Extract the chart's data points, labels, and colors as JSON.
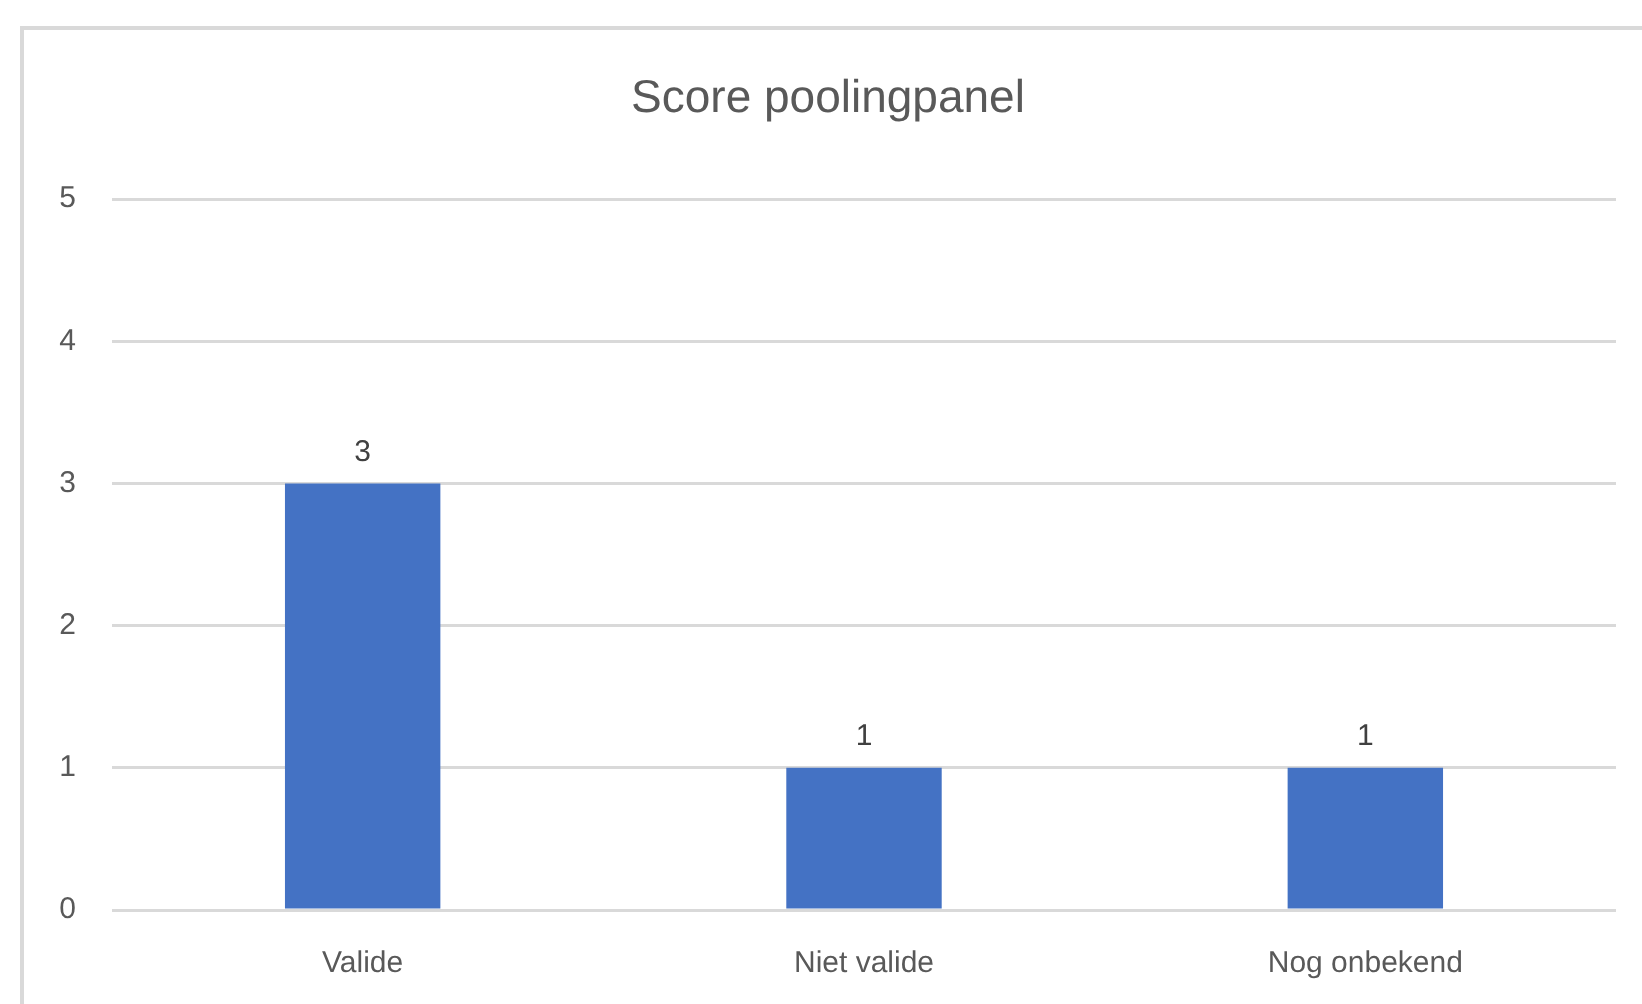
{
  "chart_data": {
    "type": "bar",
    "title": "Score poolingpanel",
    "categories": [
      "Valide",
      "Niet valide",
      "Nog onbekend"
    ],
    "values": [
      3,
      1,
      1
    ],
    "color": "#4472c4",
    "ylim": [
      0,
      5
    ],
    "yticks": [
      0,
      1,
      2,
      3,
      4,
      5
    ],
    "grid": "y",
    "data_labels": true
  }
}
